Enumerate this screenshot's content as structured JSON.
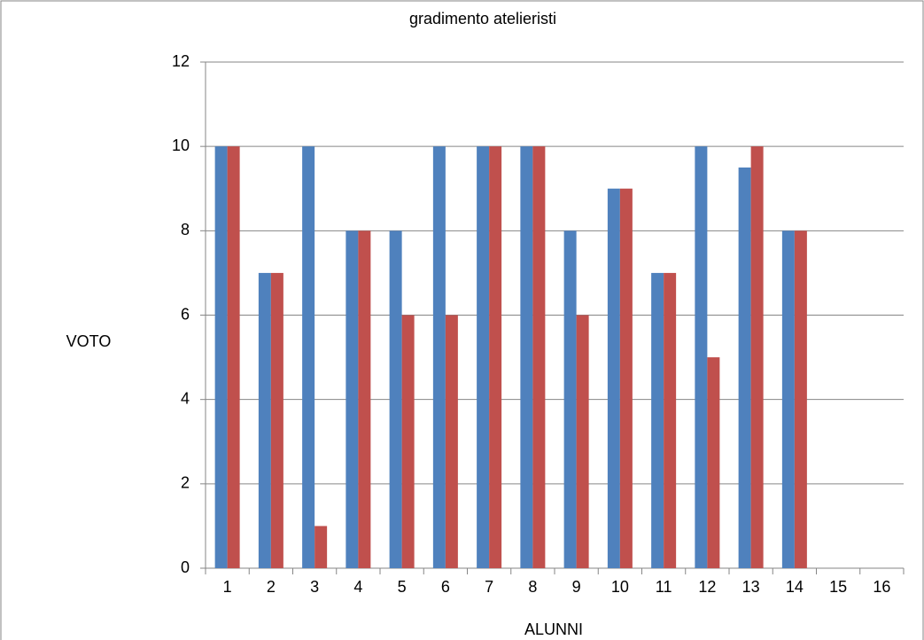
{
  "chart_data": {
    "type": "bar",
    "title": "gradimento atelieristi",
    "y_label": "VOTO",
    "x_label": "ALUNNI",
    "categories": [
      "1",
      "2",
      "3",
      "4",
      "5",
      "6",
      "7",
      "8",
      "9",
      "10",
      "11",
      "12",
      "13",
      "14",
      "15",
      "16"
    ],
    "series": [
      {
        "color": "#4f81bd",
        "values": [
          10,
          7,
          10,
          8,
          8,
          10,
          10,
          10,
          8,
          9,
          7,
          10,
          9.5,
          8,
          null,
          null
        ]
      },
      {
        "color": "#c0504d",
        "values": [
          10,
          7,
          1,
          8,
          6,
          6,
          10,
          10,
          6,
          9,
          7,
          5,
          10,
          8,
          null,
          null
        ]
      }
    ],
    "ylim": [
      0,
      12
    ],
    "yticks": [
      0,
      2,
      4,
      6,
      8,
      10,
      12
    ],
    "grid": true
  }
}
